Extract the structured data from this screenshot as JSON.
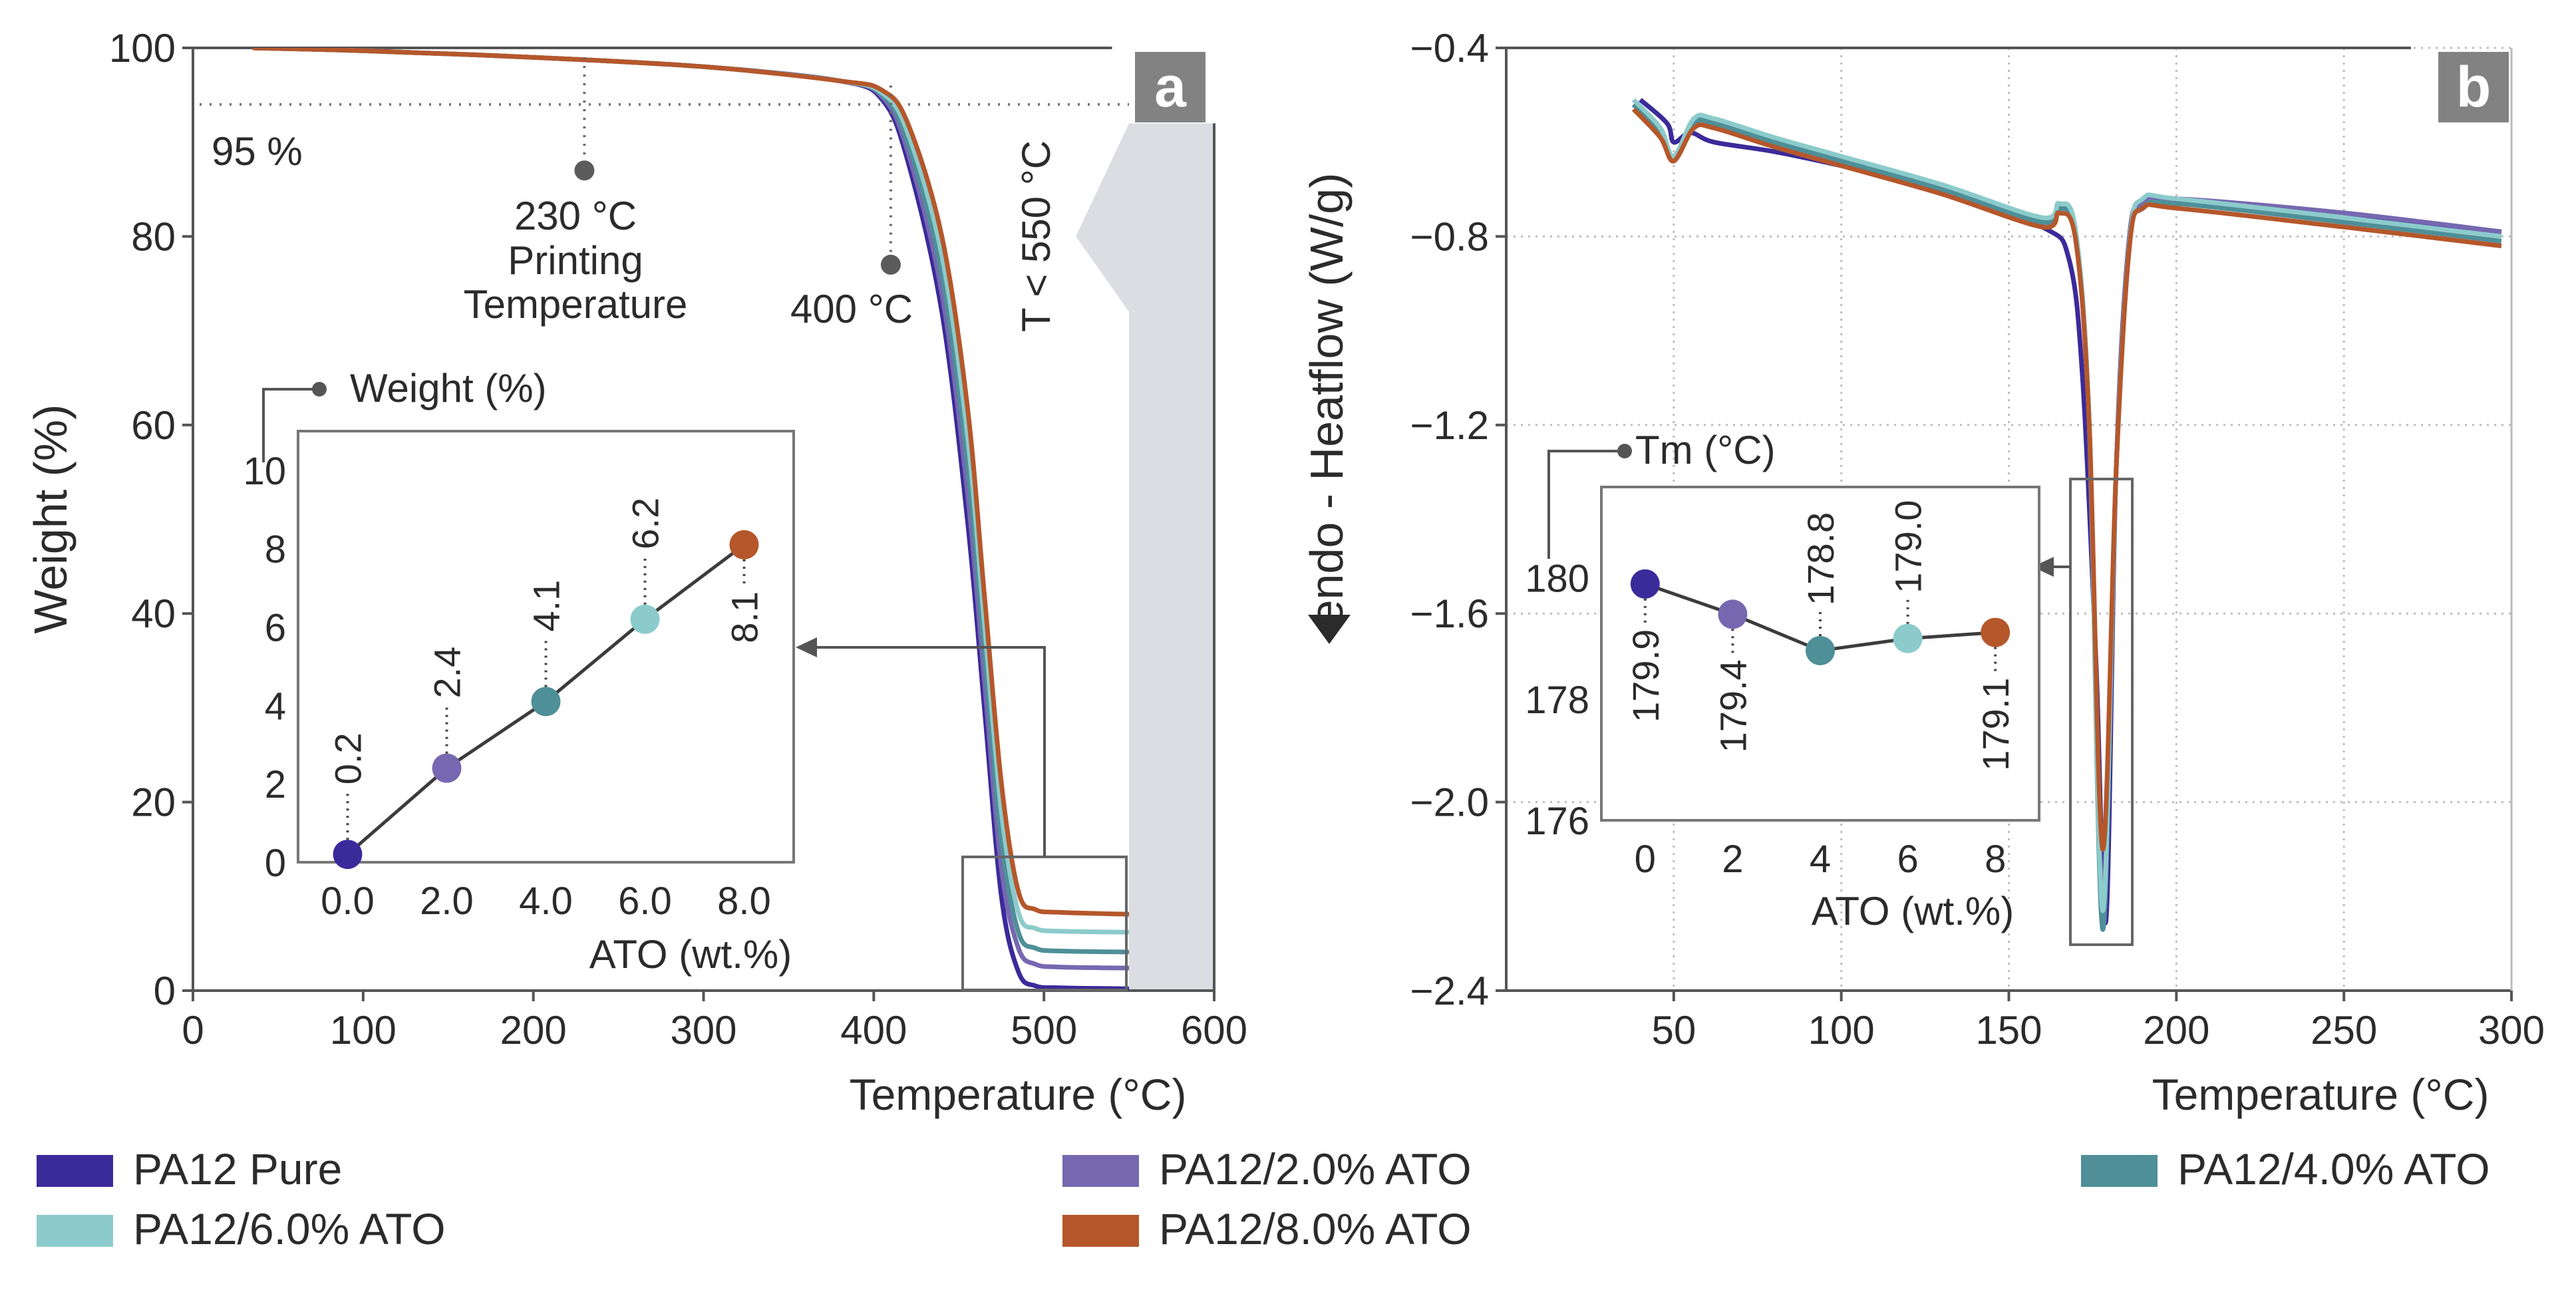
{
  "colors": {
    "pure": "#3b2a9a",
    "ato2": "#7668b0",
    "ato4": "#4e8f98",
    "ato6": "#8ccbcb",
    "ato8": "#b5572b",
    "shade": "#dcdde2",
    "grid": "#b9b9b9",
    "axis": "#555555"
  },
  "legend": [
    {
      "label": "PA12 Pure",
      "color": "#3b2a9a"
    },
    {
      "label": "PA12/2.0% ATO",
      "color": "#7668b0"
    },
    {
      "label": "PA12/4.0% ATO",
      "color": "#4e8f98"
    },
    {
      "label": "PA12/6.0% ATO",
      "color": "#8ccbcb"
    },
    {
      "label": "PA12/8.0% ATO",
      "color": "#b5572b"
    }
  ],
  "chart_data": [
    {
      "type": "line",
      "panel": "a",
      "panel_label": "a",
      "xlabel": "Temperature (°C)",
      "ylabel": "Weight (%)",
      "xlim": [
        0,
        600
      ],
      "ylim": [
        0,
        100
      ],
      "xticks": [
        "0",
        "100",
        "200",
        "300",
        "400",
        "500",
        "600"
      ],
      "yticks": [
        "0",
        "20",
        "40",
        "60",
        "80",
        "100"
      ],
      "xtick_values": [
        0,
        100,
        200,
        300,
        400,
        500,
        600
      ],
      "ytick_values": [
        0,
        20,
        40,
        60,
        80,
        100
      ],
      "shaded_region": {
        "x_from": 550,
        "x_to": 600,
        "label": "T < 550 °C"
      },
      "annotations": {
        "threshold_label": "95 %",
        "threshold_y": 94,
        "printing": {
          "x": 230,
          "y": 87,
          "line1": "230 °C",
          "line2": "Printing",
          "line3": "Temperature"
        },
        "degradation": {
          "x": 410,
          "y": 77,
          "label": "400 °C"
        }
      },
      "series": [
        {
          "name": "PA12 Pure",
          "key": "pure",
          "x": [
            35,
            100,
            200,
            300,
            380,
            405,
            420,
            440,
            455,
            465,
            475,
            485,
            495,
            510,
            550
          ],
          "y": [
            100,
            99.7,
            99,
            98,
            96.5,
            94.5,
            88,
            72,
            50,
            30,
            10,
            2,
            0.5,
            0.3,
            0.2
          ]
        },
        {
          "name": "PA12/2.0% ATO",
          "key": "ato2",
          "x": [
            35,
            100,
            200,
            300,
            380,
            405,
            420,
            440,
            455,
            465,
            475,
            485,
            495,
            510,
            550
          ],
          "y": [
            100,
            99.7,
            99,
            98,
            96.5,
            94.8,
            89,
            74,
            53,
            33,
            13,
            4.5,
            2.8,
            2.5,
            2.4
          ]
        },
        {
          "name": "PA12/4.0% ATO",
          "key": "ato4",
          "x": [
            35,
            100,
            200,
            300,
            380,
            405,
            420,
            440,
            455,
            465,
            475,
            485,
            495,
            510,
            550
          ],
          "y": [
            100,
            99.7,
            99,
            98,
            96.5,
            95,
            90,
            76,
            56,
            36,
            16,
            6.2,
            4.5,
            4.2,
            4.1
          ]
        },
        {
          "name": "PA12/6.0% ATO",
          "key": "ato6",
          "x": [
            35,
            100,
            200,
            300,
            380,
            405,
            420,
            440,
            455,
            465,
            475,
            485,
            495,
            510,
            550
          ],
          "y": [
            100,
            99.7,
            99,
            98,
            96.5,
            95.2,
            91,
            78,
            59,
            39,
            19,
            8.3,
            6.6,
            6.3,
            6.2
          ]
        },
        {
          "name": "PA12/8.0% ATO",
          "key": "ato8",
          "x": [
            35,
            100,
            200,
            300,
            380,
            405,
            420,
            440,
            455,
            465,
            475,
            485,
            495,
            510,
            550
          ],
          "y": [
            100,
            99.7,
            99,
            98,
            96.5,
            95.5,
            92,
            80,
            62,
            42,
            22,
            10.5,
            8.6,
            8.3,
            8.1
          ]
        }
      ],
      "inset": {
        "title": "Weight (%)",
        "xlabel": "ATO (wt.%)",
        "xticks": [
          "0.0",
          "2.0",
          "4.0",
          "6.0",
          "8.0"
        ],
        "yticks": [
          "0",
          "2",
          "4",
          "6",
          "8",
          "10"
        ],
        "x": [
          0,
          2,
          4,
          6,
          8
        ],
        "y": [
          0.2,
          2.4,
          4.1,
          6.2,
          8.1
        ],
        "value_labels": [
          "0.2",
          "2.4",
          "4.1",
          "6.2",
          "8.1"
        ],
        "xlim": [
          -1,
          9
        ],
        "ylim": [
          0,
          11
        ]
      }
    },
    {
      "type": "line",
      "panel": "b",
      "panel_label": "b",
      "xlabel": "Temperature (°C)",
      "ylabel": "endo - Heatflow (W/g)",
      "xlim": [
        0,
        300
      ],
      "ylim": [
        -2.4,
        -0.4
      ],
      "xticks": [
        "50",
        "100",
        "150",
        "200",
        "250",
        "300"
      ],
      "yticks": [
        "-2.4",
        "-2.0",
        "-1.6",
        "-1.2",
        "-0.8",
        "-0.4"
      ],
      "xtick_values": [
        50,
        100,
        150,
        200,
        250,
        300
      ],
      "ytick_values": [
        -2.4,
        -2.0,
        -1.6,
        -1.2,
        -0.8,
        -0.4
      ],
      "series": [
        {
          "name": "PA12 Pure",
          "key": "pure",
          "x": [
            40,
            48,
            50,
            55,
            62,
            80,
            100,
            130,
            160,
            168,
            172,
            176,
            179,
            182,
            186,
            190,
            200,
            250,
            297
          ],
          "y": [
            -0.51,
            -0.56,
            -0.6,
            -0.58,
            -0.6,
            -0.62,
            -0.65,
            -0.7,
            -0.78,
            -0.85,
            -1.1,
            -1.7,
            -2.25,
            -1.3,
            -0.8,
            -0.74,
            -0.73,
            -0.76,
            -0.79
          ]
        },
        {
          "name": "PA12/2.0% ATO",
          "key": "ato2",
          "x": [
            38,
            46,
            50,
            56,
            62,
            80,
            100,
            130,
            160,
            165,
            170,
            174,
            178,
            182,
            186,
            190,
            200,
            250,
            297
          ],
          "y": [
            -0.52,
            -0.58,
            -0.63,
            -0.56,
            -0.56,
            -0.6,
            -0.64,
            -0.7,
            -0.77,
            -0.74,
            -0.8,
            -1.2,
            -2.2,
            -1.3,
            -0.82,
            -0.73,
            -0.72,
            -0.75,
            -0.79
          ]
        },
        {
          "name": "PA12/4.0% ATO",
          "key": "ato4",
          "x": [
            38,
            46,
            50,
            56,
            62,
            80,
            100,
            130,
            160,
            165,
            170,
            174,
            178,
            182,
            186,
            190,
            200,
            250,
            297
          ],
          "y": [
            -0.52,
            -0.58,
            -0.64,
            -0.56,
            -0.56,
            -0.6,
            -0.64,
            -0.7,
            -0.77,
            -0.74,
            -0.8,
            -1.2,
            -2.27,
            -1.3,
            -0.82,
            -0.74,
            -0.73,
            -0.77,
            -0.81
          ]
        },
        {
          "name": "PA12/6.0% ATO",
          "key": "ato6",
          "x": [
            38,
            46,
            50,
            56,
            62,
            80,
            100,
            130,
            160,
            165,
            170,
            174,
            178,
            182,
            186,
            190,
            200,
            250,
            297
          ],
          "y": [
            -0.51,
            -0.57,
            -0.63,
            -0.55,
            -0.55,
            -0.59,
            -0.63,
            -0.69,
            -0.76,
            -0.73,
            -0.79,
            -1.2,
            -2.23,
            -1.3,
            -0.81,
            -0.72,
            -0.72,
            -0.76,
            -0.8
          ]
        },
        {
          "name": "PA12/8.0% ATO",
          "key": "ato8",
          "x": [
            38,
            46,
            50,
            56,
            62,
            80,
            100,
            130,
            160,
            165,
            170,
            174,
            178,
            182,
            186,
            190,
            200,
            250,
            297
          ],
          "y": [
            -0.53,
            -0.59,
            -0.64,
            -0.57,
            -0.57,
            -0.61,
            -0.65,
            -0.71,
            -0.78,
            -0.75,
            -0.81,
            -1.2,
            -2.1,
            -1.3,
            -0.82,
            -0.74,
            -0.74,
            -0.78,
            -0.82
          ]
        }
      ],
      "inset": {
        "title": "Tm (°C)",
        "xlabel": "ATO (wt.%)",
        "xticks": [
          "0",
          "2",
          "4",
          "6",
          "8"
        ],
        "yticks": [
          "176",
          "178",
          "180"
        ],
        "x": [
          0,
          2,
          4,
          6,
          8
        ],
        "y": [
          179.9,
          179.4,
          178.8,
          179.0,
          179.1
        ],
        "value_labels": [
          "179.9",
          "179.4",
          "178.8",
          "179.0",
          "179.1"
        ],
        "label_side": [
          "below",
          "below",
          "above",
          "above",
          "below"
        ],
        "xlim": [
          -1,
          9
        ],
        "ylim": [
          176,
          181.5
        ]
      }
    }
  ]
}
